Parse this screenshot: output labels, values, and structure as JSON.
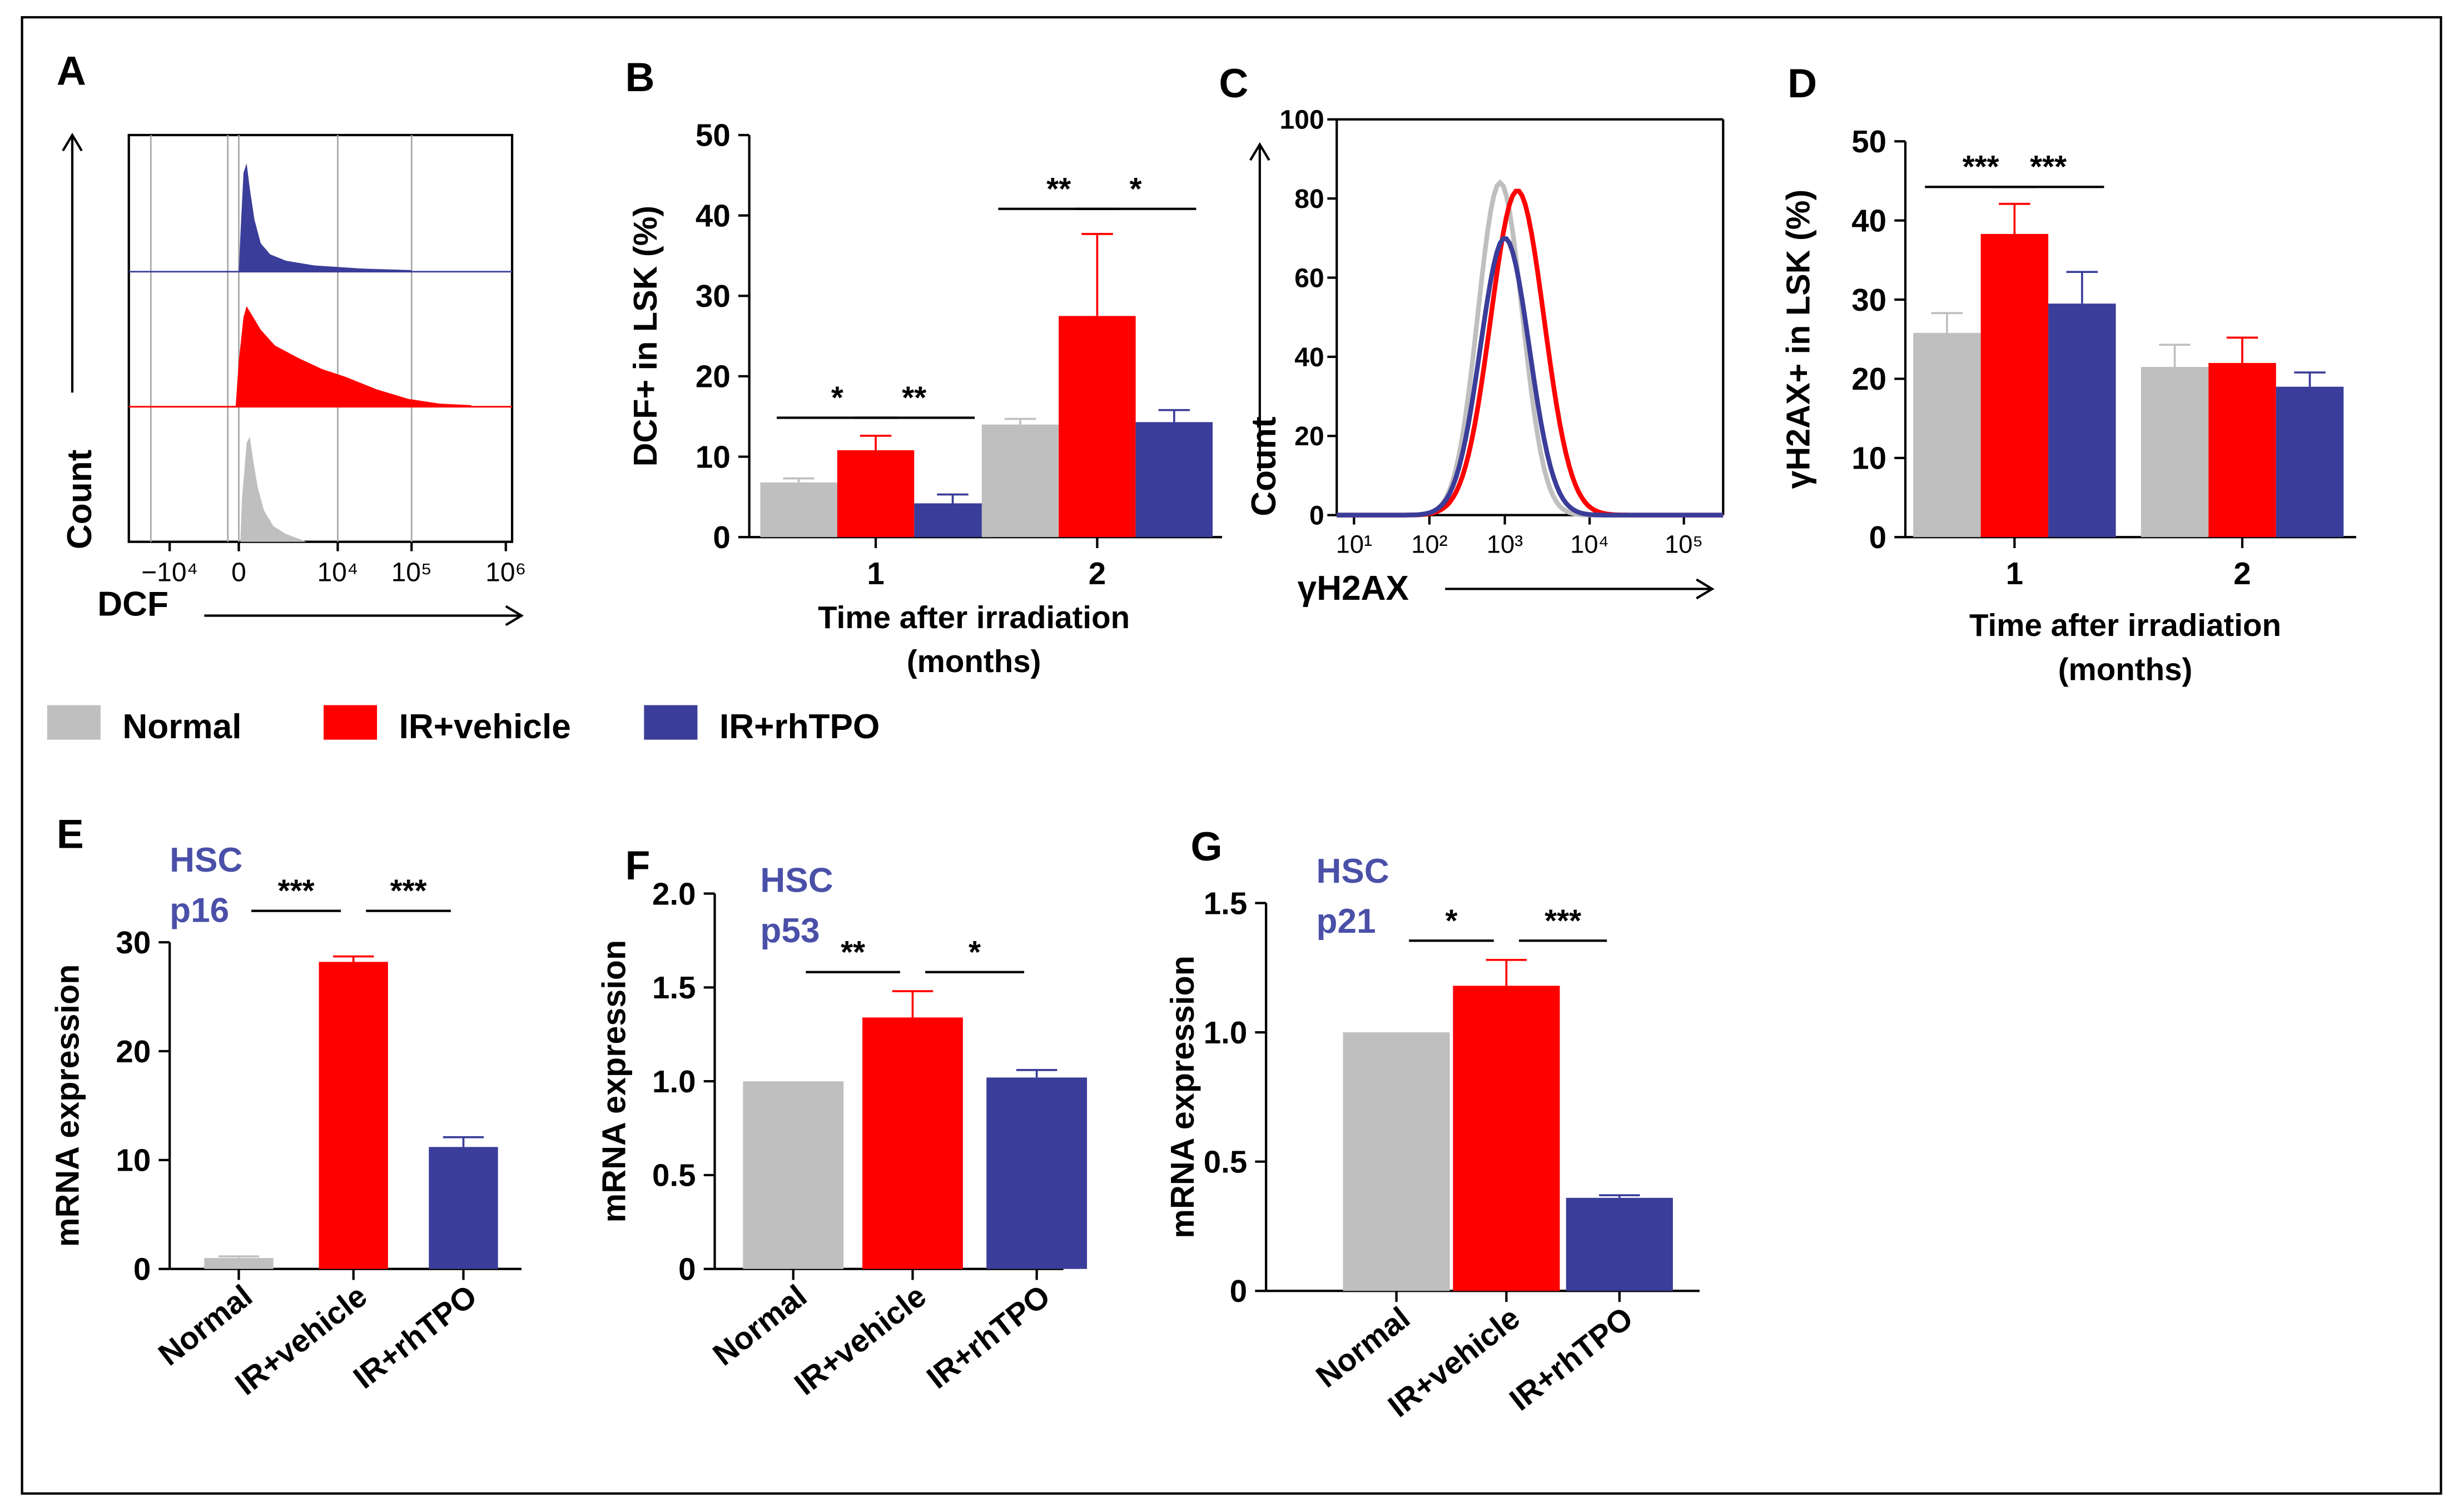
{
  "colors": {
    "normal": "#bfbfbf",
    "vehicle": "#ff0000",
    "rhtpo": "#3a3d99",
    "label_blue": "#4a50a8",
    "axis": "#000000"
  },
  "legend": {
    "normal": "Normal",
    "vehicle": "IR+vehicle",
    "rhtpo": "IR+rhTPO"
  },
  "chart_data": [
    {
      "panel": "A",
      "type": "area",
      "xlabel": "DCF",
      "ylabel": "Count",
      "xticks": [
        "−10⁴",
        "0",
        "10⁴",
        "10⁵",
        "10⁶"
      ],
      "series_order": [
        "IR+rhTPO",
        "IR+vehicle",
        "Normal"
      ]
    },
    {
      "panel": "B",
      "type": "bar",
      "ylabel": "DCF+ in LSK (%)",
      "xlabel_line1": "Time after irradiation",
      "xlabel_line2": "(months)",
      "categories": [
        "1",
        "2"
      ],
      "yticks": [
        "0",
        "10",
        "20",
        "30",
        "40",
        "50"
      ],
      "ylim": [
        0,
        50
      ],
      "series": [
        {
          "name": "Normal",
          "values": [
            6.8,
            14.0
          ],
          "errors": [
            0.5,
            0.7
          ]
        },
        {
          "name": "IR+vehicle",
          "values": [
            10.8,
            27.5
          ],
          "errors": [
            1.8,
            10.2
          ]
        },
        {
          "name": "IR+rhTPO",
          "values": [
            4.2,
            14.3
          ],
          "errors": [
            1.1,
            1.5
          ]
        }
      ],
      "significance": [
        {
          "group": 0,
          "pair": [
            0,
            1
          ],
          "label": "*"
        },
        {
          "group": 0,
          "pair": [
            1,
            2
          ],
          "label": "**"
        },
        {
          "group": 1,
          "pair": [
            0,
            1
          ],
          "label": "**"
        },
        {
          "group": 1,
          "pair": [
            1,
            2
          ],
          "label": "*"
        }
      ]
    },
    {
      "panel": "C",
      "type": "line",
      "xlabel": "γH2AX",
      "ylabel": "Count",
      "yticks": [
        "0",
        "20",
        "40",
        "60",
        "80",
        "100"
      ],
      "ylim": [
        0,
        100
      ],
      "xticks": [
        "10¹",
        "10²",
        "10³",
        "10⁴",
        "10⁵"
      ],
      "peaks": {
        "Normal": 84,
        "IR+vehicle": 82,
        "IR+rhTPO": 70
      }
    },
    {
      "panel": "D",
      "type": "bar",
      "ylabel": "γH2AX+ in LSK (%)",
      "xlabel_line1": "Time after irradiation",
      "xlabel_line2": "(months)",
      "categories": [
        "1",
        "2"
      ],
      "yticks": [
        "0",
        "10",
        "20",
        "30",
        "40",
        "50"
      ],
      "ylim": [
        0,
        50
      ],
      "series": [
        {
          "name": "Normal",
          "values": [
            25.8,
            21.5
          ],
          "errors": [
            2.5,
            2.8
          ]
        },
        {
          "name": "IR+vehicle",
          "values": [
            38.3,
            22.0
          ],
          "errors": [
            3.8,
            3.2
          ]
        },
        {
          "name": "IR+rhTPO",
          "values": [
            29.5,
            19.0
          ],
          "errors": [
            4.0,
            1.8
          ]
        }
      ],
      "significance": [
        {
          "group": 0,
          "pair": [
            0,
            1
          ],
          "label": "***"
        },
        {
          "group": 0,
          "pair": [
            1,
            2
          ],
          "label": "***"
        }
      ]
    },
    {
      "panel": "E",
      "type": "bar",
      "title_line1": "HSC",
      "title_line2": "p16",
      "ylabel": "mRNA expression",
      "categories": [
        "Normal",
        "IR+vehicle",
        "IR+rhTPO"
      ],
      "yticks": [
        "0",
        "10",
        "20",
        "30"
      ],
      "ylim": [
        0,
        30
      ],
      "values": [
        1.0,
        28.2,
        11.2
      ],
      "errors": [
        0.15,
        0.5,
        0.9
      ],
      "significance": [
        {
          "pair": [
            0,
            1
          ],
          "label": "***"
        },
        {
          "pair": [
            1,
            2
          ],
          "label": "***"
        }
      ]
    },
    {
      "panel": "F",
      "type": "bar",
      "title_line1": "HSC",
      "title_line2": "p53",
      "ylabel": "mRNA expression",
      "categories": [
        "Normal",
        "IR+vehicle",
        "IR+rhTPO"
      ],
      "yticks": [
        "0",
        "0.5",
        "1.0",
        "1.5",
        "2.0"
      ],
      "ylim": [
        0,
        2.0
      ],
      "values": [
        1.0,
        1.34,
        1.02
      ],
      "errors": [
        0.0,
        0.14,
        0.04
      ],
      "significance": [
        {
          "pair": [
            0,
            1
          ],
          "label": "**"
        },
        {
          "pair": [
            1,
            2
          ],
          "label": "*"
        }
      ]
    },
    {
      "panel": "G",
      "type": "bar",
      "title_line1": "HSC",
      "title_line2": "p21",
      "ylabel": "mRNA expression",
      "categories": [
        "Normal",
        "IR+vehicle",
        "IR+rhTPO"
      ],
      "yticks": [
        "0",
        "0.5",
        "1.0",
        "1.5"
      ],
      "ylim": [
        0,
        1.5
      ],
      "values": [
        1.0,
        1.18,
        0.36
      ],
      "errors": [
        0.0,
        0.1,
        0.01
      ],
      "significance": [
        {
          "pair": [
            0,
            1
          ],
          "label": "*"
        },
        {
          "pair": [
            1,
            2
          ],
          "label": "***"
        }
      ]
    }
  ]
}
